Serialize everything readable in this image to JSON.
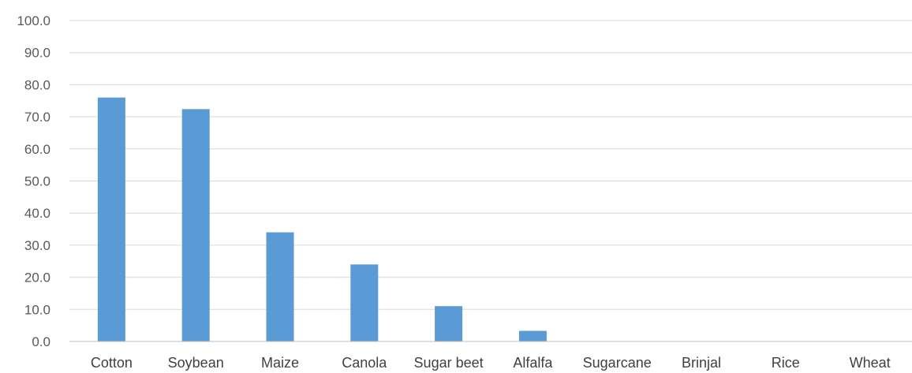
{
  "chart_data": {
    "type": "bar",
    "title": "",
    "xlabel": "",
    "ylabel": "",
    "categories": [
      "Cotton",
      "Soybean",
      "Maize",
      "Canola",
      "Sugar beet",
      "Alfalfa",
      "Sugarcane",
      "Brinjal",
      "Rice",
      "Wheat"
    ],
    "values": [
      76.0,
      72.4,
      34.0,
      24.0,
      11.0,
      3.3,
      0.0,
      0.0,
      0.0,
      0.0
    ],
    "ylim": [
      0,
      100
    ],
    "yticks": [
      "0.0",
      "10.0",
      "20.0",
      "30.0",
      "40.0",
      "50.0",
      "60.0",
      "70.0",
      "80.0",
      "90.0",
      "100.0"
    ],
    "grid": true,
    "legend": "none",
    "bar_color": "#5b9bd5"
  }
}
